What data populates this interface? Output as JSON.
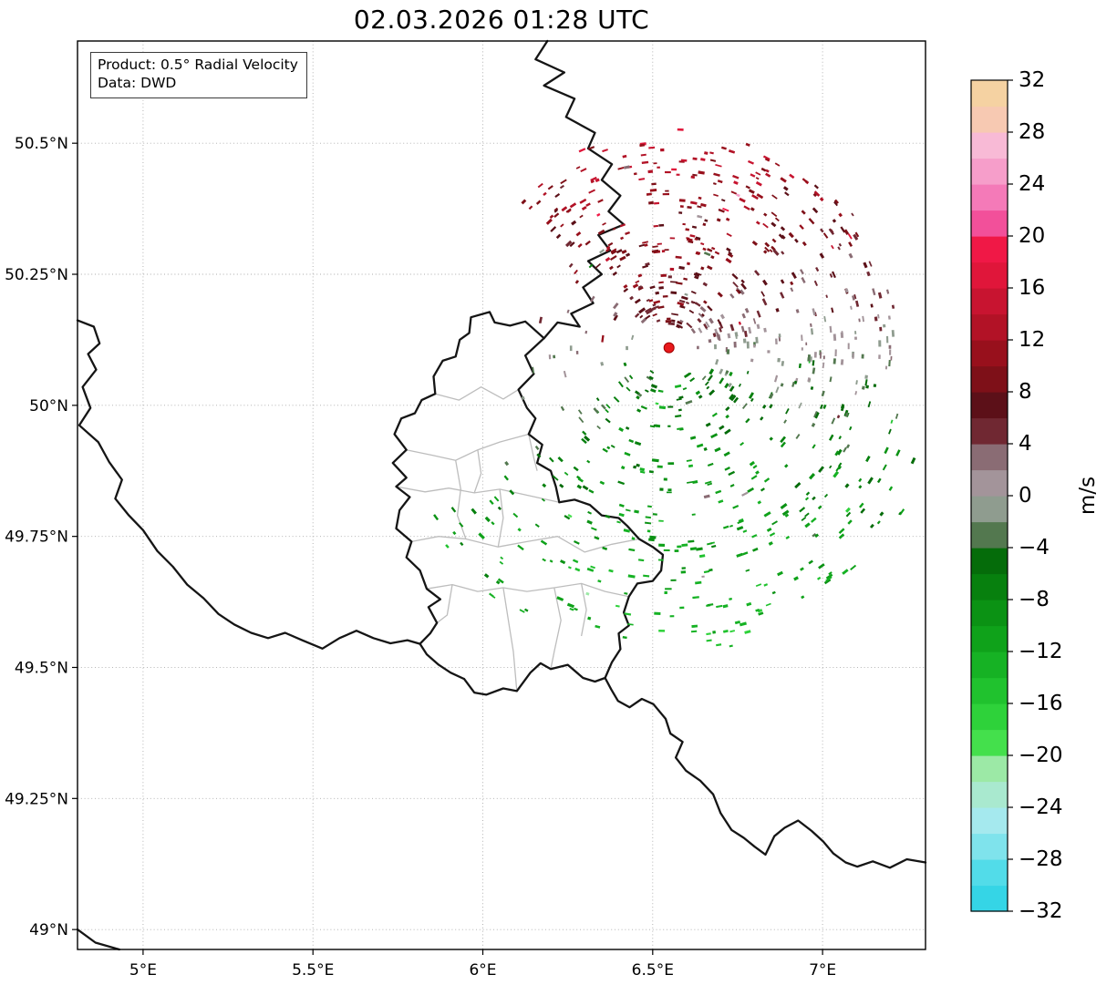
{
  "figure": {
    "title": "02.03.2026 01:28 UTC",
    "annotation": {
      "product_line": "Product: 0.5° Radial Velocity",
      "data_line": "Data: DWD"
    }
  },
  "chart_data": {
    "type": "scatter",
    "subtype": "radar-radial-velocity-map",
    "title": "02.03.2026 01:28 UTC",
    "product": "0.5° Radial Velocity",
    "source": "DWD",
    "axes": {
      "lon_min": 4.807,
      "lon_max": 7.303,
      "lat_min": 48.962,
      "lat_max": 50.695,
      "x_ticks": [
        5.0,
        5.5,
        6.0,
        6.5,
        7.0
      ],
      "x_tick_labels": [
        "5°E",
        "5.5°E",
        "6°E",
        "6.5°E",
        "7°E"
      ],
      "y_ticks": [
        49.0,
        49.25,
        49.5,
        49.75,
        50.0,
        50.25,
        50.5
      ],
      "y_tick_labels": [
        "49°N",
        "49.25°N",
        "49.5°N",
        "49.75°N",
        "50°N",
        "50.25°N",
        "50.5°N"
      ],
      "grid": "dotted"
    },
    "colorbar": {
      "label": "m/s",
      "min": -32,
      "max": 32,
      "tick_step": 4,
      "ticks": [
        32,
        28,
        24,
        20,
        16,
        12,
        8,
        4,
        0,
        -4,
        -8,
        -12,
        -16,
        -20,
        -24,
        -28,
        -32
      ],
      "tick_labels": [
        "32",
        "28",
        "24",
        "20",
        "16",
        "12",
        "8",
        "4",
        "0",
        "−4",
        "−8",
        "−12",
        "−16",
        "−20",
        "−24",
        "−28",
        "−32"
      ],
      "colors_low_to_high": [
        "#35d5e6",
        "#52dce9",
        "#7fe3ec",
        "#a5e9ee",
        "#a9e9cf",
        "#9ce9a6",
        "#44e04c",
        "#2ed23a",
        "#20c22e",
        "#16b224",
        "#0fa21a",
        "#0b9214",
        "#07800e",
        "#056c0a",
        "#53784f",
        "#8f9c8f",
        "#a3949a",
        "#8a6c74",
        "#702832",
        "#5c1018",
        "#7e1018",
        "#98101c",
        "#b21226",
        "#c81430",
        "#e0163a",
        "#f01846",
        "#f2509a",
        "#f47ab8",
        "#f69eca",
        "#f8bad6",
        "#f7c9b2",
        "#f5d2a2"
      ]
    },
    "radar_site": {
      "lon": 6.548,
      "lat": 50.11,
      "marker_color": "#e8191c"
    },
    "scatter_model": {
      "seed": 20260302,
      "attempts": 1500,
      "wind_speed_ms": 11,
      "pattern": "positive (red/maroon) radial velocities north-northeast of radar, negative (green) south-southwest, gray near zero-isodop band, sparse west sector, few pink outliers east"
    },
    "borders": {
      "country": [
        [
          [
            6.19,
            50.695
          ],
          [
            6.155,
            50.66
          ],
          [
            6.24,
            50.635
          ],
          [
            6.18,
            50.61
          ],
          [
            6.27,
            50.585
          ],
          [
            6.245,
            50.55
          ],
          [
            6.33,
            50.52
          ],
          [
            6.31,
            50.49
          ],
          [
            6.38,
            50.46
          ],
          [
            6.35,
            50.43
          ],
          [
            6.405,
            50.4
          ],
          [
            6.37,
            50.37
          ],
          [
            6.415,
            50.345
          ],
          [
            6.34,
            50.325
          ],
          [
            6.375,
            50.295
          ],
          [
            6.31,
            50.275
          ],
          [
            6.35,
            50.25
          ],
          [
            6.295,
            50.225
          ],
          [
            6.325,
            50.195
          ],
          [
            6.26,
            50.175
          ],
          [
            6.285,
            50.15
          ],
          [
            6.22,
            50.158
          ],
          [
            6.18,
            50.128
          ]
        ],
        [
          [
            6.18,
            50.128
          ],
          [
            6.125,
            50.095
          ],
          [
            6.15,
            50.06
          ],
          [
            6.105,
            50.03
          ],
          [
            6.13,
            49.995
          ],
          [
            6.155,
            49.975
          ],
          [
            6.135,
            49.945
          ],
          [
            6.175,
            49.925
          ],
          [
            6.16,
            49.89
          ],
          [
            6.2,
            49.875
          ],
          [
            6.215,
            49.845
          ],
          [
            6.225,
            49.815
          ],
          [
            6.27,
            49.82
          ],
          [
            6.315,
            49.81
          ],
          [
            6.35,
            49.79
          ],
          [
            6.4,
            49.785
          ],
          [
            6.425,
            49.77
          ],
          [
            6.46,
            49.745
          ],
          [
            6.5,
            49.73
          ],
          [
            6.53,
            49.715
          ],
          [
            6.525,
            49.685
          ],
          [
            6.5,
            49.665
          ],
          [
            6.455,
            49.66
          ],
          [
            6.43,
            49.635
          ],
          [
            6.415,
            49.605
          ],
          [
            6.43,
            49.58
          ],
          [
            6.4,
            49.565
          ],
          [
            6.405,
            49.535
          ],
          [
            6.38,
            49.51
          ],
          [
            6.36,
            49.48
          ],
          [
            6.33,
            49.473
          ],
          [
            6.295,
            49.48
          ],
          [
            6.25,
            49.505
          ],
          [
            6.2,
            49.497
          ],
          [
            6.17,
            49.508
          ],
          [
            6.14,
            49.49
          ],
          [
            6.1,
            49.455
          ],
          [
            6.06,
            49.46
          ],
          [
            6.01,
            49.448
          ],
          [
            5.975,
            49.452
          ],
          [
            5.945,
            49.478
          ],
          [
            5.905,
            49.49
          ],
          [
            5.87,
            49.505
          ],
          [
            5.835,
            49.525
          ],
          [
            5.815,
            49.545
          ],
          [
            5.845,
            49.565
          ],
          [
            5.865,
            49.585
          ],
          [
            5.84,
            49.615
          ],
          [
            5.875,
            49.63
          ],
          [
            5.835,
            49.65
          ],
          [
            5.815,
            49.685
          ],
          [
            5.775,
            49.71
          ],
          [
            5.79,
            49.74
          ],
          [
            5.745,
            49.765
          ],
          [
            5.755,
            49.8
          ],
          [
            5.785,
            49.825
          ],
          [
            5.745,
            49.845
          ],
          [
            5.775,
            49.862
          ],
          [
            5.735,
            49.89
          ],
          [
            5.775,
            49.915
          ],
          [
            5.74,
            49.945
          ],
          [
            5.76,
            49.975
          ],
          [
            5.8,
            49.985
          ],
          [
            5.82,
            50.01
          ],
          [
            5.86,
            50.022
          ],
          [
            5.855,
            50.055
          ],
          [
            5.882,
            50.085
          ],
          [
            5.92,
            50.093
          ],
          [
            5.932,
            50.125
          ],
          [
            5.96,
            50.138
          ],
          [
            5.965,
            50.168
          ],
          [
            6.02,
            50.178
          ],
          [
            6.035,
            50.158
          ],
          [
            6.08,
            50.152
          ],
          [
            6.125,
            50.16
          ],
          [
            6.18,
            50.128
          ]
        ],
        [
          [
            4.807,
            50.162
          ],
          [
            4.855,
            50.15
          ],
          [
            4.872,
            50.118
          ],
          [
            4.838,
            50.098
          ],
          [
            4.862,
            50.068
          ],
          [
            4.822,
            50.035
          ],
          [
            4.845,
            49.995
          ],
          [
            4.812,
            49.962
          ],
          [
            4.868,
            49.93
          ],
          [
            4.9,
            49.892
          ],
          [
            4.938,
            49.858
          ],
          [
            4.918,
            49.822
          ],
          [
            4.958,
            49.79
          ],
          [
            5.0,
            49.762
          ],
          [
            5.042,
            49.722
          ],
          [
            5.088,
            49.692
          ],
          [
            5.13,
            49.658
          ],
          [
            5.178,
            49.632
          ],
          [
            5.222,
            49.602
          ],
          [
            5.268,
            49.582
          ],
          [
            5.318,
            49.566
          ],
          [
            5.368,
            49.556
          ],
          [
            5.418,
            49.566
          ],
          [
            5.468,
            49.552
          ],
          [
            5.528,
            49.536
          ],
          [
            5.578,
            49.556
          ],
          [
            5.628,
            49.57
          ],
          [
            5.678,
            49.556
          ],
          [
            5.728,
            49.546
          ],
          [
            5.778,
            49.552
          ],
          [
            5.815,
            49.545
          ]
        ],
        [
          [
            6.36,
            49.48
          ],
          [
            6.378,
            49.458
          ],
          [
            6.398,
            49.436
          ],
          [
            6.432,
            49.424
          ],
          [
            6.468,
            49.44
          ],
          [
            6.502,
            49.43
          ],
          [
            6.538,
            49.402
          ],
          [
            6.552,
            49.374
          ],
          [
            6.588,
            49.358
          ],
          [
            6.568,
            49.328
          ],
          [
            6.598,
            49.303
          ],
          [
            6.64,
            49.284
          ],
          [
            6.678,
            49.258
          ],
          [
            6.7,
            49.222
          ],
          [
            6.732,
            49.19
          ],
          [
            6.768,
            49.175
          ],
          [
            6.8,
            49.158
          ],
          [
            6.832,
            49.143
          ],
          [
            6.858,
            49.178
          ],
          [
            6.888,
            49.194
          ],
          [
            6.928,
            49.208
          ],
          [
            6.968,
            49.188
          ],
          [
            7.002,
            49.168
          ],
          [
            7.032,
            49.145
          ],
          [
            7.068,
            49.128
          ],
          [
            7.102,
            49.12
          ],
          [
            7.148,
            49.13
          ],
          [
            7.198,
            49.118
          ],
          [
            7.248,
            49.134
          ],
          [
            7.303,
            49.128
          ]
        ],
        [
          [
            4.807,
            49.0
          ],
          [
            4.86,
            48.975
          ],
          [
            4.93,
            48.962
          ]
        ]
      ],
      "district": [
        [
          [
            5.86,
            50.022
          ],
          [
            5.93,
            50.01
          ],
          [
            5.995,
            50.035
          ],
          [
            6.06,
            50.012
          ],
          [
            6.105,
            50.03
          ]
        ],
        [
          [
            5.775,
            49.915
          ],
          [
            5.85,
            49.905
          ],
          [
            5.92,
            49.895
          ],
          [
            5.985,
            49.915
          ],
          [
            6.05,
            49.93
          ],
          [
            6.135,
            49.945
          ]
        ],
        [
          [
            5.745,
            49.845
          ],
          [
            5.83,
            49.835
          ],
          [
            5.9,
            49.842
          ],
          [
            5.975,
            49.833
          ],
          [
            6.05,
            49.84
          ],
          [
            6.12,
            49.83
          ],
          [
            6.225,
            49.815
          ]
        ],
        [
          [
            5.92,
            49.895
          ],
          [
            5.935,
            49.84
          ],
          [
            5.925,
            49.79
          ],
          [
            5.95,
            49.745
          ]
        ],
        [
          [
            6.05,
            49.84
          ],
          [
            6.06,
            49.785
          ],
          [
            6.045,
            49.73
          ]
        ],
        [
          [
            5.79,
            49.74
          ],
          [
            5.87,
            49.75
          ],
          [
            5.95,
            49.745
          ],
          [
            6.045,
            49.73
          ],
          [
            6.13,
            49.74
          ],
          [
            6.22,
            49.75
          ],
          [
            6.3,
            49.72
          ],
          [
            6.38,
            49.735
          ],
          [
            6.46,
            49.745
          ]
        ],
        [
          [
            5.835,
            49.65
          ],
          [
            5.91,
            49.658
          ],
          [
            5.985,
            49.645
          ],
          [
            6.06,
            49.652
          ],
          [
            6.13,
            49.645
          ],
          [
            6.21,
            49.652
          ],
          [
            6.29,
            49.66
          ],
          [
            6.36,
            49.645
          ],
          [
            6.43,
            49.635
          ]
        ],
        [
          [
            6.06,
            49.652
          ],
          [
            6.075,
            49.59
          ],
          [
            6.09,
            49.53
          ],
          [
            6.1,
            49.455
          ]
        ],
        [
          [
            6.21,
            49.652
          ],
          [
            6.23,
            49.59
          ],
          [
            6.21,
            49.53
          ],
          [
            6.2,
            49.497
          ]
        ],
        [
          [
            5.91,
            49.658
          ],
          [
            5.895,
            49.6
          ],
          [
            5.865,
            49.585
          ]
        ],
        [
          [
            5.985,
            49.915
          ],
          [
            5.995,
            49.87
          ],
          [
            5.975,
            49.833
          ]
        ],
        [
          [
            6.135,
            49.945
          ],
          [
            6.15,
            49.9
          ],
          [
            6.16,
            49.875
          ]
        ],
        [
          [
            6.29,
            49.66
          ],
          [
            6.305,
            49.61
          ],
          [
            6.29,
            49.56
          ]
        ]
      ]
    }
  }
}
